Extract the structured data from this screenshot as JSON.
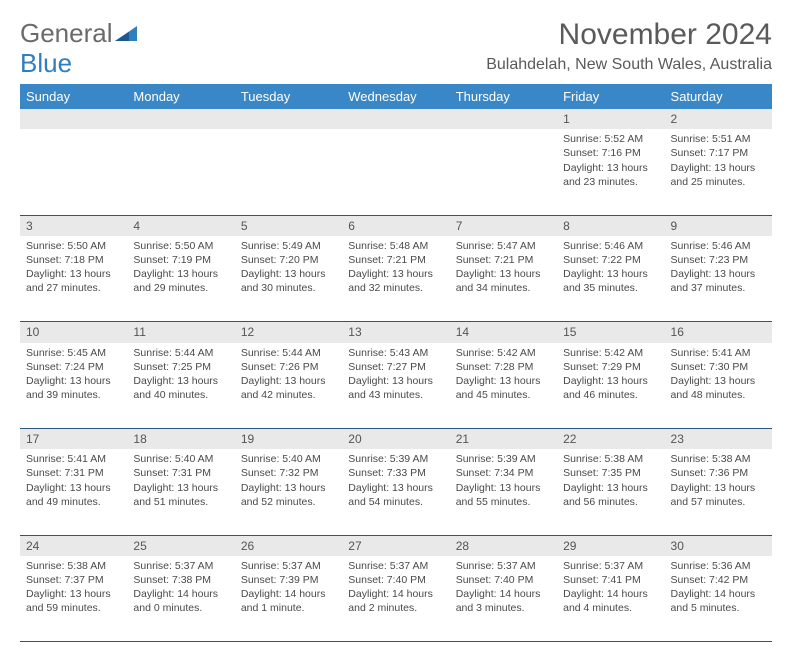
{
  "brand": {
    "part1": "General",
    "part2": "Blue"
  },
  "title": "November 2024",
  "location": "Bulahdelah, New South Wales, Australia",
  "colors": {
    "header_bg": "#3a87c8",
    "header_text": "#ffffff",
    "daynum_bg": "#e9e9e9",
    "divider": "#2f567a",
    "text": "#4a4a4a",
    "brand_gray": "#6b6b6b",
    "brand_blue": "#2f7ec0"
  },
  "day_headers": [
    "Sunday",
    "Monday",
    "Tuesday",
    "Wednesday",
    "Thursday",
    "Friday",
    "Saturday"
  ],
  "weeks": [
    {
      "nums": [
        "",
        "",
        "",
        "",
        "",
        "1",
        "2"
      ],
      "cells": [
        null,
        null,
        null,
        null,
        null,
        {
          "sunrise": "Sunrise: 5:52 AM",
          "sunset": "Sunset: 7:16 PM",
          "day1": "Daylight: 13 hours",
          "day2": "and 23 minutes."
        },
        {
          "sunrise": "Sunrise: 5:51 AM",
          "sunset": "Sunset: 7:17 PM",
          "day1": "Daylight: 13 hours",
          "day2": "and 25 minutes."
        }
      ]
    },
    {
      "nums": [
        "3",
        "4",
        "5",
        "6",
        "7",
        "8",
        "9"
      ],
      "cells": [
        {
          "sunrise": "Sunrise: 5:50 AM",
          "sunset": "Sunset: 7:18 PM",
          "day1": "Daylight: 13 hours",
          "day2": "and 27 minutes."
        },
        {
          "sunrise": "Sunrise: 5:50 AM",
          "sunset": "Sunset: 7:19 PM",
          "day1": "Daylight: 13 hours",
          "day2": "and 29 minutes."
        },
        {
          "sunrise": "Sunrise: 5:49 AM",
          "sunset": "Sunset: 7:20 PM",
          "day1": "Daylight: 13 hours",
          "day2": "and 30 minutes."
        },
        {
          "sunrise": "Sunrise: 5:48 AM",
          "sunset": "Sunset: 7:21 PM",
          "day1": "Daylight: 13 hours",
          "day2": "and 32 minutes."
        },
        {
          "sunrise": "Sunrise: 5:47 AM",
          "sunset": "Sunset: 7:21 PM",
          "day1": "Daylight: 13 hours",
          "day2": "and 34 minutes."
        },
        {
          "sunrise": "Sunrise: 5:46 AM",
          "sunset": "Sunset: 7:22 PM",
          "day1": "Daylight: 13 hours",
          "day2": "and 35 minutes."
        },
        {
          "sunrise": "Sunrise: 5:46 AM",
          "sunset": "Sunset: 7:23 PM",
          "day1": "Daylight: 13 hours",
          "day2": "and 37 minutes."
        }
      ]
    },
    {
      "nums": [
        "10",
        "11",
        "12",
        "13",
        "14",
        "15",
        "16"
      ],
      "cells": [
        {
          "sunrise": "Sunrise: 5:45 AM",
          "sunset": "Sunset: 7:24 PM",
          "day1": "Daylight: 13 hours",
          "day2": "and 39 minutes."
        },
        {
          "sunrise": "Sunrise: 5:44 AM",
          "sunset": "Sunset: 7:25 PM",
          "day1": "Daylight: 13 hours",
          "day2": "and 40 minutes."
        },
        {
          "sunrise": "Sunrise: 5:44 AM",
          "sunset": "Sunset: 7:26 PM",
          "day1": "Daylight: 13 hours",
          "day2": "and 42 minutes."
        },
        {
          "sunrise": "Sunrise: 5:43 AM",
          "sunset": "Sunset: 7:27 PM",
          "day1": "Daylight: 13 hours",
          "day2": "and 43 minutes."
        },
        {
          "sunrise": "Sunrise: 5:42 AM",
          "sunset": "Sunset: 7:28 PM",
          "day1": "Daylight: 13 hours",
          "day2": "and 45 minutes."
        },
        {
          "sunrise": "Sunrise: 5:42 AM",
          "sunset": "Sunset: 7:29 PM",
          "day1": "Daylight: 13 hours",
          "day2": "and 46 minutes."
        },
        {
          "sunrise": "Sunrise: 5:41 AM",
          "sunset": "Sunset: 7:30 PM",
          "day1": "Daylight: 13 hours",
          "day2": "and 48 minutes."
        }
      ]
    },
    {
      "nums": [
        "17",
        "18",
        "19",
        "20",
        "21",
        "22",
        "23"
      ],
      "cells": [
        {
          "sunrise": "Sunrise: 5:41 AM",
          "sunset": "Sunset: 7:31 PM",
          "day1": "Daylight: 13 hours",
          "day2": "and 49 minutes."
        },
        {
          "sunrise": "Sunrise: 5:40 AM",
          "sunset": "Sunset: 7:31 PM",
          "day1": "Daylight: 13 hours",
          "day2": "and 51 minutes."
        },
        {
          "sunrise": "Sunrise: 5:40 AM",
          "sunset": "Sunset: 7:32 PM",
          "day1": "Daylight: 13 hours",
          "day2": "and 52 minutes."
        },
        {
          "sunrise": "Sunrise: 5:39 AM",
          "sunset": "Sunset: 7:33 PM",
          "day1": "Daylight: 13 hours",
          "day2": "and 54 minutes."
        },
        {
          "sunrise": "Sunrise: 5:39 AM",
          "sunset": "Sunset: 7:34 PM",
          "day1": "Daylight: 13 hours",
          "day2": "and 55 minutes."
        },
        {
          "sunrise": "Sunrise: 5:38 AM",
          "sunset": "Sunset: 7:35 PM",
          "day1": "Daylight: 13 hours",
          "day2": "and 56 minutes."
        },
        {
          "sunrise": "Sunrise: 5:38 AM",
          "sunset": "Sunset: 7:36 PM",
          "day1": "Daylight: 13 hours",
          "day2": "and 57 minutes."
        }
      ]
    },
    {
      "nums": [
        "24",
        "25",
        "26",
        "27",
        "28",
        "29",
        "30"
      ],
      "cells": [
        {
          "sunrise": "Sunrise: 5:38 AM",
          "sunset": "Sunset: 7:37 PM",
          "day1": "Daylight: 13 hours",
          "day2": "and 59 minutes."
        },
        {
          "sunrise": "Sunrise: 5:37 AM",
          "sunset": "Sunset: 7:38 PM",
          "day1": "Daylight: 14 hours",
          "day2": "and 0 minutes."
        },
        {
          "sunrise": "Sunrise: 5:37 AM",
          "sunset": "Sunset: 7:39 PM",
          "day1": "Daylight: 14 hours",
          "day2": "and 1 minute."
        },
        {
          "sunrise": "Sunrise: 5:37 AM",
          "sunset": "Sunset: 7:40 PM",
          "day1": "Daylight: 14 hours",
          "day2": "and 2 minutes."
        },
        {
          "sunrise": "Sunrise: 5:37 AM",
          "sunset": "Sunset: 7:40 PM",
          "day1": "Daylight: 14 hours",
          "day2": "and 3 minutes."
        },
        {
          "sunrise": "Sunrise: 5:37 AM",
          "sunset": "Sunset: 7:41 PM",
          "day1": "Daylight: 14 hours",
          "day2": "and 4 minutes."
        },
        {
          "sunrise": "Sunrise: 5:36 AM",
          "sunset": "Sunset: 7:42 PM",
          "day1": "Daylight: 14 hours",
          "day2": "and 5 minutes."
        }
      ]
    }
  ]
}
